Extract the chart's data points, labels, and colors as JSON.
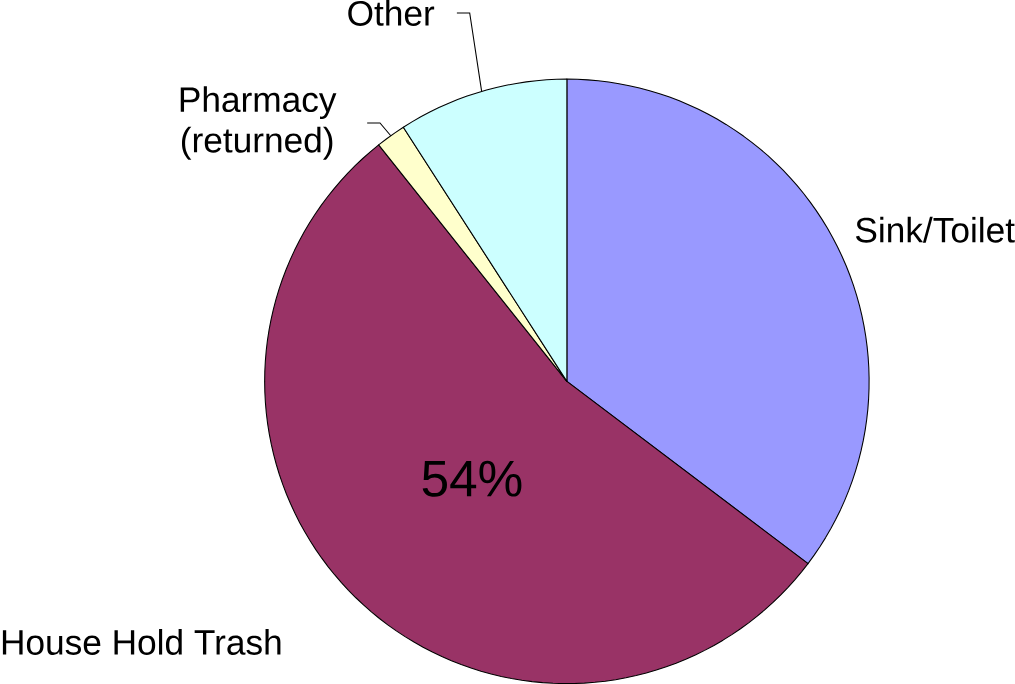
{
  "chart_data": {
    "type": "pie",
    "categories": [
      "Sink/Toilet",
      "House Hold Trash",
      "Pharmacy (returned)",
      "Other"
    ],
    "values": [
      35.3,
      54,
      1.6,
      9.1
    ],
    "colors": [
      "#9999ff",
      "#993366",
      "#ffffcc",
      "#ccffff"
    ],
    "value_labels": [
      null,
      "54%",
      null,
      null
    ]
  }
}
